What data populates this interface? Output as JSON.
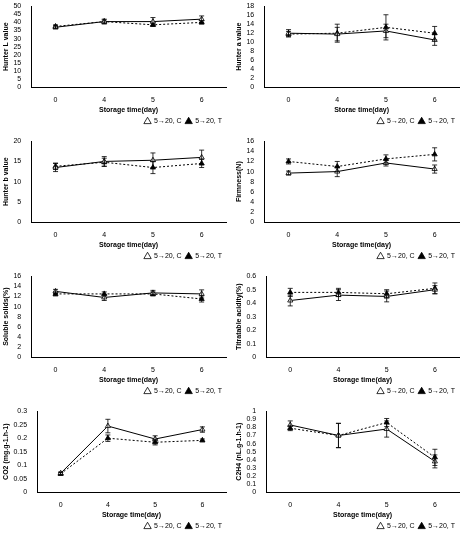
{
  "chart_data": [
    {
      "type": "line",
      "x_label": "Storage time(day)",
      "y_label": "Hunter L value",
      "categories": [
        "0",
        "4",
        "5",
        "6"
      ],
      "ylim": [
        0,
        50
      ],
      "yticks": [
        0,
        5,
        10,
        15,
        20,
        25,
        30,
        35,
        40,
        45,
        50
      ],
      "grid": false,
      "legend": "bottom",
      "series": [
        {
          "name": "5→20, C",
          "color": "#000000",
          "line_style": "solid",
          "marker": "triangle-open",
          "values": [
            37,
            40.5,
            40.5,
            42
          ],
          "errors": [
            1,
            1.5,
            2.5,
            2
          ]
        },
        {
          "name": "5→20, T",
          "color": "#000000",
          "line_style": "dotted",
          "marker": "triangle",
          "values": [
            37.5,
            40.5,
            38.5,
            40
          ],
          "errors": [
            1,
            1,
            1,
            1
          ]
        }
      ]
    },
    {
      "type": "line",
      "x_label": "Storae time(day)",
      "y_label": "Hunter a value",
      "categories": [
        "0",
        "4",
        "5",
        "6"
      ],
      "ylim": [
        0,
        18
      ],
      "yticks": [
        0,
        2,
        4,
        6,
        8,
        10,
        12,
        14,
        16,
        18
      ],
      "grid": false,
      "legend": "bottom",
      "series": [
        {
          "name": "5→20, C",
          "color": "#000000",
          "line_style": "solid",
          "marker": "triangle-open",
          "values": [
            12,
            11.8,
            12.5,
            10.5
          ],
          "errors": [
            0.8,
            1.5,
            1.5,
            1.2
          ]
        },
        {
          "name": "5→20, T",
          "color": "#000000",
          "line_style": "dotted",
          "marker": "triangle",
          "values": [
            11.8,
            12,
            13.3,
            12
          ],
          "errors": [
            0.6,
            2,
            2.8,
            1.5
          ]
        }
      ]
    },
    {
      "type": "line",
      "x_label": "Storage time(day)",
      "y_label": "Hunter b value",
      "categories": [
        "0",
        "4",
        "5",
        "6"
      ],
      "ylim": [
        0,
        20
      ],
      "yticks": [
        0,
        5,
        10,
        15,
        20
      ],
      "grid": false,
      "legend": "bottom",
      "series": [
        {
          "name": "5→20, C",
          "color": "#000000",
          "line_style": "solid",
          "marker": "triangle-open",
          "values": [
            13.5,
            15,
            15.3,
            16
          ],
          "errors": [
            1,
            1.2,
            1.8,
            1.8
          ]
        },
        {
          "name": "5→20, T",
          "color": "#000000",
          "line_style": "dotted",
          "marker": "triangle",
          "values": [
            13.8,
            14.8,
            13.5,
            14.5
          ],
          "errors": [
            0.8,
            1,
            1.5,
            1
          ]
        }
      ]
    },
    {
      "type": "line",
      "x_label": "Storage time(day)",
      "y_label": "Firmness(N)",
      "categories": [
        "0",
        "4",
        "5",
        "6"
      ],
      "ylim": [
        0,
        16
      ],
      "yticks": [
        0,
        2,
        4,
        6,
        8,
        10,
        12,
        14,
        16
      ],
      "grid": false,
      "legend": "bottom",
      "series": [
        {
          "name": "5→20, C",
          "color": "#000000",
          "line_style": "solid",
          "marker": "triangle-open",
          "values": [
            9.7,
            10,
            11.7,
            10.5
          ],
          "errors": [
            0.4,
            1,
            0.6,
            0.8
          ]
        },
        {
          "name": "5→20, T",
          "color": "#000000",
          "line_style": "dotted",
          "marker": "triangle",
          "values": [
            12,
            11,
            12.5,
            13.4
          ],
          "errors": [
            0.5,
            1,
            0.8,
            1.3
          ]
        }
      ]
    },
    {
      "type": "line",
      "x_label": "Storage time(day)",
      "y_label": "Soluble solids(%)",
      "categories": [
        "0",
        "4",
        "5",
        "6"
      ],
      "ylim": [
        0,
        16
      ],
      "yticks": [
        0,
        2,
        4,
        6,
        8,
        10,
        12,
        14,
        16
      ],
      "grid": false,
      "legend": "bottom",
      "series": [
        {
          "name": "5→20, C",
          "color": "#000000",
          "line_style": "solid",
          "marker": "triangle-open",
          "values": [
            13,
            11.8,
            12.7,
            12.5
          ],
          "errors": [
            0.4,
            0.6,
            0.5,
            0.8
          ]
        },
        {
          "name": "5→20, T",
          "color": "#000000",
          "line_style": "dotted",
          "marker": "triangle",
          "values": [
            12.5,
            12.5,
            12.5,
            11.5
          ],
          "errors": [
            0.4,
            0.4,
            0.4,
            0.6
          ]
        }
      ]
    },
    {
      "type": "line",
      "x_label": "Storage time(day)",
      "y_label": "Titratable acidity(%)",
      "categories": [
        "0",
        "4",
        "5",
        "6"
      ],
      "ylim": [
        0,
        0.6
      ],
      "yticks": [
        0,
        0.1,
        0.2,
        0.3,
        0.4,
        0.5,
        0.6
      ],
      "grid": false,
      "legend": "bottom",
      "series": [
        {
          "name": "5→20, C",
          "color": "#000000",
          "line_style": "solid",
          "marker": "triangle-open",
          "values": [
            0.42,
            0.46,
            0.45,
            0.5
          ],
          "errors": [
            0.04,
            0.04,
            0.04,
            0.03
          ]
        },
        {
          "name": "5→20, T",
          "color": "#000000",
          "line_style": "dotted",
          "marker": "triangle",
          "values": [
            0.48,
            0.48,
            0.47,
            0.51
          ],
          "errors": [
            0.03,
            0.03,
            0.03,
            0.04
          ]
        }
      ]
    },
    {
      "type": "line",
      "x_label": "Storage time(day)",
      "y_label": "CO2 (mg.g-1.h-1)",
      "categories": [
        "0",
        "4",
        "5",
        "6"
      ],
      "ylim": [
        0,
        0.3
      ],
      "yticks": [
        0,
        0.05,
        0.1,
        0.15,
        0.2,
        0.25,
        0.3
      ],
      "grid": false,
      "legend": "bottom",
      "series": [
        {
          "name": "5→20, C",
          "color": "#000000",
          "line_style": "solid",
          "marker": "triangle-open",
          "values": [
            0.07,
            0.245,
            0.197,
            0.232
          ],
          "errors": [
            0.005,
            0.025,
            0.012,
            0.01
          ]
        },
        {
          "name": "5→20, T",
          "color": "#000000",
          "line_style": "dotted",
          "marker": "triangle",
          "values": [
            0.068,
            0.2,
            0.185,
            0.192
          ],
          "errors": [
            0.005,
            0.012,
            0.01,
            0.005
          ]
        }
      ]
    },
    {
      "type": "line",
      "x_label": "Storage time(day)",
      "y_label": "C2H4 (nL.g-1.h-1)",
      "categories": [
        "0",
        "4",
        "5",
        "6"
      ],
      "ylim": [
        0,
        1
      ],
      "yticks": [
        0,
        0.1,
        0.2,
        0.3,
        0.4,
        0.5,
        0.6,
        0.7,
        0.8,
        0.9,
        1
      ],
      "grid": false,
      "legend": "bottom",
      "series": [
        {
          "name": "5→20, C",
          "color": "#000000",
          "line_style": "solid",
          "marker": "triangle-open",
          "values": [
            0.83,
            0.7,
            0.78,
            0.38
          ],
          "errors": [
            0.05,
            0.15,
            0.1,
            0.08
          ]
        },
        {
          "name": "5→20, T",
          "color": "#000000",
          "line_style": "dotted",
          "marker": "triangle",
          "values": [
            0.79,
            0.7,
            0.86,
            0.43
          ],
          "errors": [
            0.03,
            0.15,
            0.05,
            0.1
          ]
        }
      ]
    }
  ]
}
